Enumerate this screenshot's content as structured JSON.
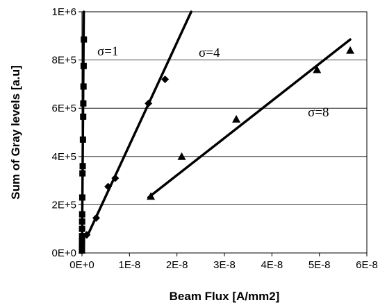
{
  "chart_data": {
    "type": "scatter",
    "title": "",
    "xlabel": "Beam Flux  [A/mm2]",
    "ylabel": "Sum of Gray levels  [a.u]",
    "xlim": [
      0,
      6e-08
    ],
    "ylim": [
      0,
      1000000
    ],
    "x_tick_labels": [
      "0E+0",
      "1E-8",
      "2E-8",
      "3E-8",
      "4E-8",
      "5E-8",
      "6E-8"
    ],
    "y_tick_labels": [
      "0E+0",
      "2E+5",
      "4E+5",
      "6E+5",
      "8E+5",
      "1E+6"
    ],
    "grid": "horizontal",
    "legend": "none",
    "series": [
      {
        "name": "σ=1",
        "marker": "square",
        "points": [
          [
            0.0,
            10000
          ],
          [
            0.0,
            20000
          ],
          [
            0.0,
            30000
          ],
          [
            1e-11,
            50000
          ],
          [
            2e-11,
            70000
          ],
          [
            2e-11,
            100000
          ],
          [
            3e-11,
            130000
          ],
          [
            4e-11,
            160000
          ],
          [
            6e-11,
            230000
          ],
          [
            1e-10,
            330000
          ],
          [
            1.5e-10,
            360000
          ],
          [
            2e-10,
            470000
          ],
          [
            2.5e-10,
            565000
          ],
          [
            2.8e-10,
            620000
          ],
          [
            3.2e-10,
            690000
          ],
          [
            3.5e-10,
            775000
          ],
          [
            4e-10,
            885000
          ]
        ],
        "fit": [
          [
            0.0,
            0
          ],
          [
            3.8e-10,
            1000000
          ]
        ]
      },
      {
        "name": "σ=4",
        "marker": "diamond",
        "points": [
          [
            1e-09,
            75000
          ],
          [
            3e-09,
            145000
          ],
          [
            5.5e-09,
            275000
          ],
          [
            7e-09,
            310000
          ],
          [
            1.4e-08,
            620000
          ],
          [
            1.75e-08,
            720000
          ]
        ],
        "fit": [
          [
            1e-09,
            65000
          ],
          [
            2.3e-08,
            1000000
          ]
        ]
      },
      {
        "name": "σ=8",
        "marker": "triangle",
        "points": [
          [
            1.45e-08,
            235000
          ],
          [
            2.1e-08,
            400000
          ],
          [
            3.25e-08,
            555000
          ],
          [
            4.95e-08,
            760000
          ],
          [
            5.65e-08,
            840000
          ]
        ],
        "fit": [
          [
            1.4e-08,
            230000
          ],
          [
            5.65e-08,
            885000
          ]
        ]
      }
    ]
  }
}
